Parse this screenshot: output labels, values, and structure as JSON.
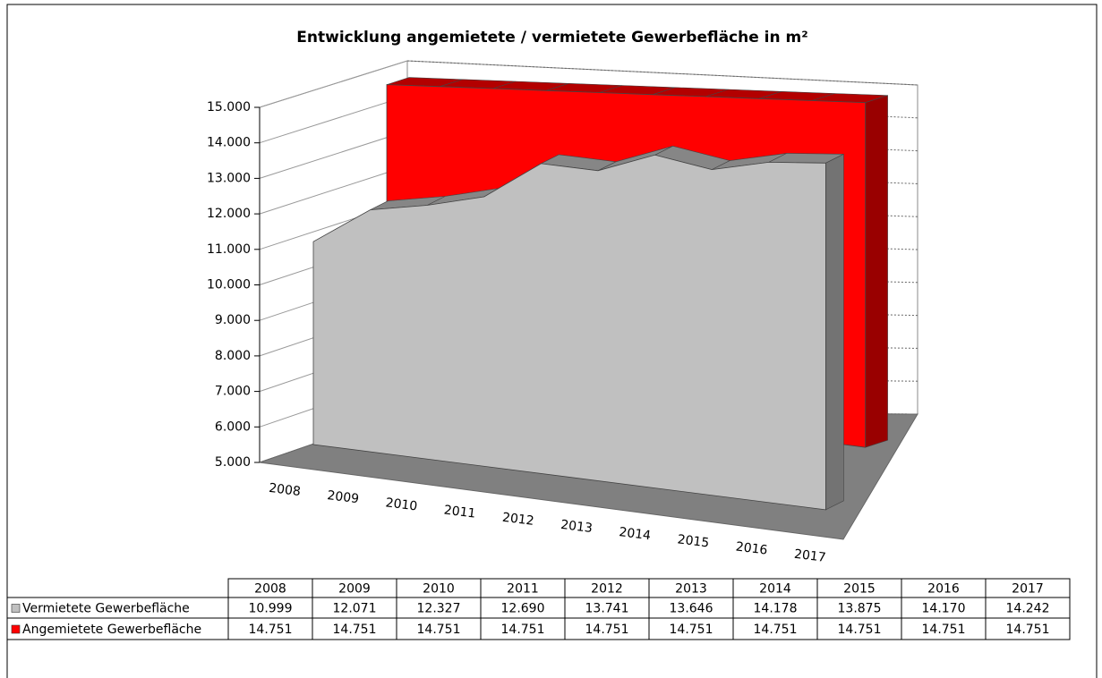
{
  "chart_data": {
    "type": "area",
    "title": "Entwicklung angemietete / vermietete  Gewerbefläche in m²",
    "categories": [
      "2008",
      "2009",
      "2010",
      "2011",
      "2012",
      "2013",
      "2014",
      "2015",
      "2016",
      "2017"
    ],
    "series": [
      {
        "name": "Vermietete Gewerbefläche",
        "color": "#c0c0c0",
        "values": [
          10999,
          12071,
          12327,
          12690,
          13741,
          13646,
          14178,
          13875,
          14170,
          14242
        ],
        "value_labels": [
          "10.999",
          "12.071",
          "12.327",
          "12.690",
          "13.741",
          "13.646",
          "14.178",
          "13.875",
          "14.170",
          "14.242"
        ]
      },
      {
        "name": "Angemietete Gewerbefläche",
        "color": "#ff0000",
        "values": [
          14751,
          14751,
          14751,
          14751,
          14751,
          14751,
          14751,
          14751,
          14751,
          14751
        ],
        "value_labels": [
          "14.751",
          "14.751",
          "14.751",
          "14.751",
          "14.751",
          "14.751",
          "14.751",
          "14.751",
          "14.751",
          "14.751"
        ]
      }
    ],
    "ylim": [
      5000,
      15000
    ],
    "yticks": [
      {
        "value": 5000,
        "label": "5.000"
      },
      {
        "value": 6000,
        "label": "6.000"
      },
      {
        "value": 7000,
        "label": "7.000"
      },
      {
        "value": 8000,
        "label": "8.000"
      },
      {
        "value": 9000,
        "label": "9.000"
      },
      {
        "value": 10000,
        "label": "10.000"
      },
      {
        "value": 11000,
        "label": "11.000"
      },
      {
        "value": 12000,
        "label": "12.000"
      },
      {
        "value": 13000,
        "label": "13.000"
      },
      {
        "value": 14000,
        "label": "14.000"
      },
      {
        "value": 15000,
        "label": "15.000"
      }
    ],
    "grid": true
  }
}
